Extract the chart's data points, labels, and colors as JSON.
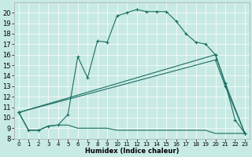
{
  "xlabel": "Humidex (Indice chaleur)",
  "bg_color": "#c8eae4",
  "line_color": "#1a6e62",
  "xlim": [
    -0.5,
    23.5
  ],
  "ylim": [
    8,
    21
  ],
  "xticks": [
    0,
    1,
    2,
    3,
    4,
    5,
    6,
    7,
    8,
    9,
    10,
    11,
    12,
    13,
    14,
    15,
    16,
    17,
    18,
    19,
    20,
    21,
    22,
    23
  ],
  "yticks": [
    8,
    9,
    10,
    11,
    12,
    13,
    14,
    15,
    16,
    17,
    18,
    19,
    20
  ],
  "line1_x": [
    0,
    1,
    2,
    3,
    4,
    5,
    6,
    7,
    8,
    9,
    10,
    11,
    12,
    13,
    14,
    15,
    16,
    17,
    18,
    19,
    20,
    21,
    22,
    23
  ],
  "line1_y": [
    10.5,
    8.8,
    8.8,
    9.2,
    9.3,
    10.3,
    15.8,
    13.8,
    17.3,
    17.2,
    19.7,
    20.0,
    20.3,
    20.1,
    20.1,
    20.1,
    19.2,
    18.0,
    17.2,
    17.0,
    16.0,
    13.3,
    9.8,
    8.5
  ],
  "line2_x": [
    0,
    20,
    21,
    23
  ],
  "line2_y": [
    10.5,
    16.0,
    13.3,
    8.5
  ],
  "line3_x": [
    0,
    20,
    21,
    23
  ],
  "line3_y": [
    10.5,
    15.5,
    13.0,
    8.5
  ],
  "line4_x": [
    0,
    1,
    2,
    3,
    4,
    5,
    6,
    7,
    8,
    9,
    10,
    11,
    12,
    13,
    14,
    15,
    16,
    17,
    18,
    19,
    20,
    21,
    22,
    23
  ],
  "line4_y": [
    10.5,
    8.8,
    8.8,
    9.2,
    9.3,
    9.3,
    9.0,
    9.0,
    9.0,
    9.0,
    8.8,
    8.8,
    8.8,
    8.8,
    8.8,
    8.8,
    8.8,
    8.8,
    8.8,
    8.8,
    8.5,
    8.5,
    8.5,
    8.5
  ]
}
